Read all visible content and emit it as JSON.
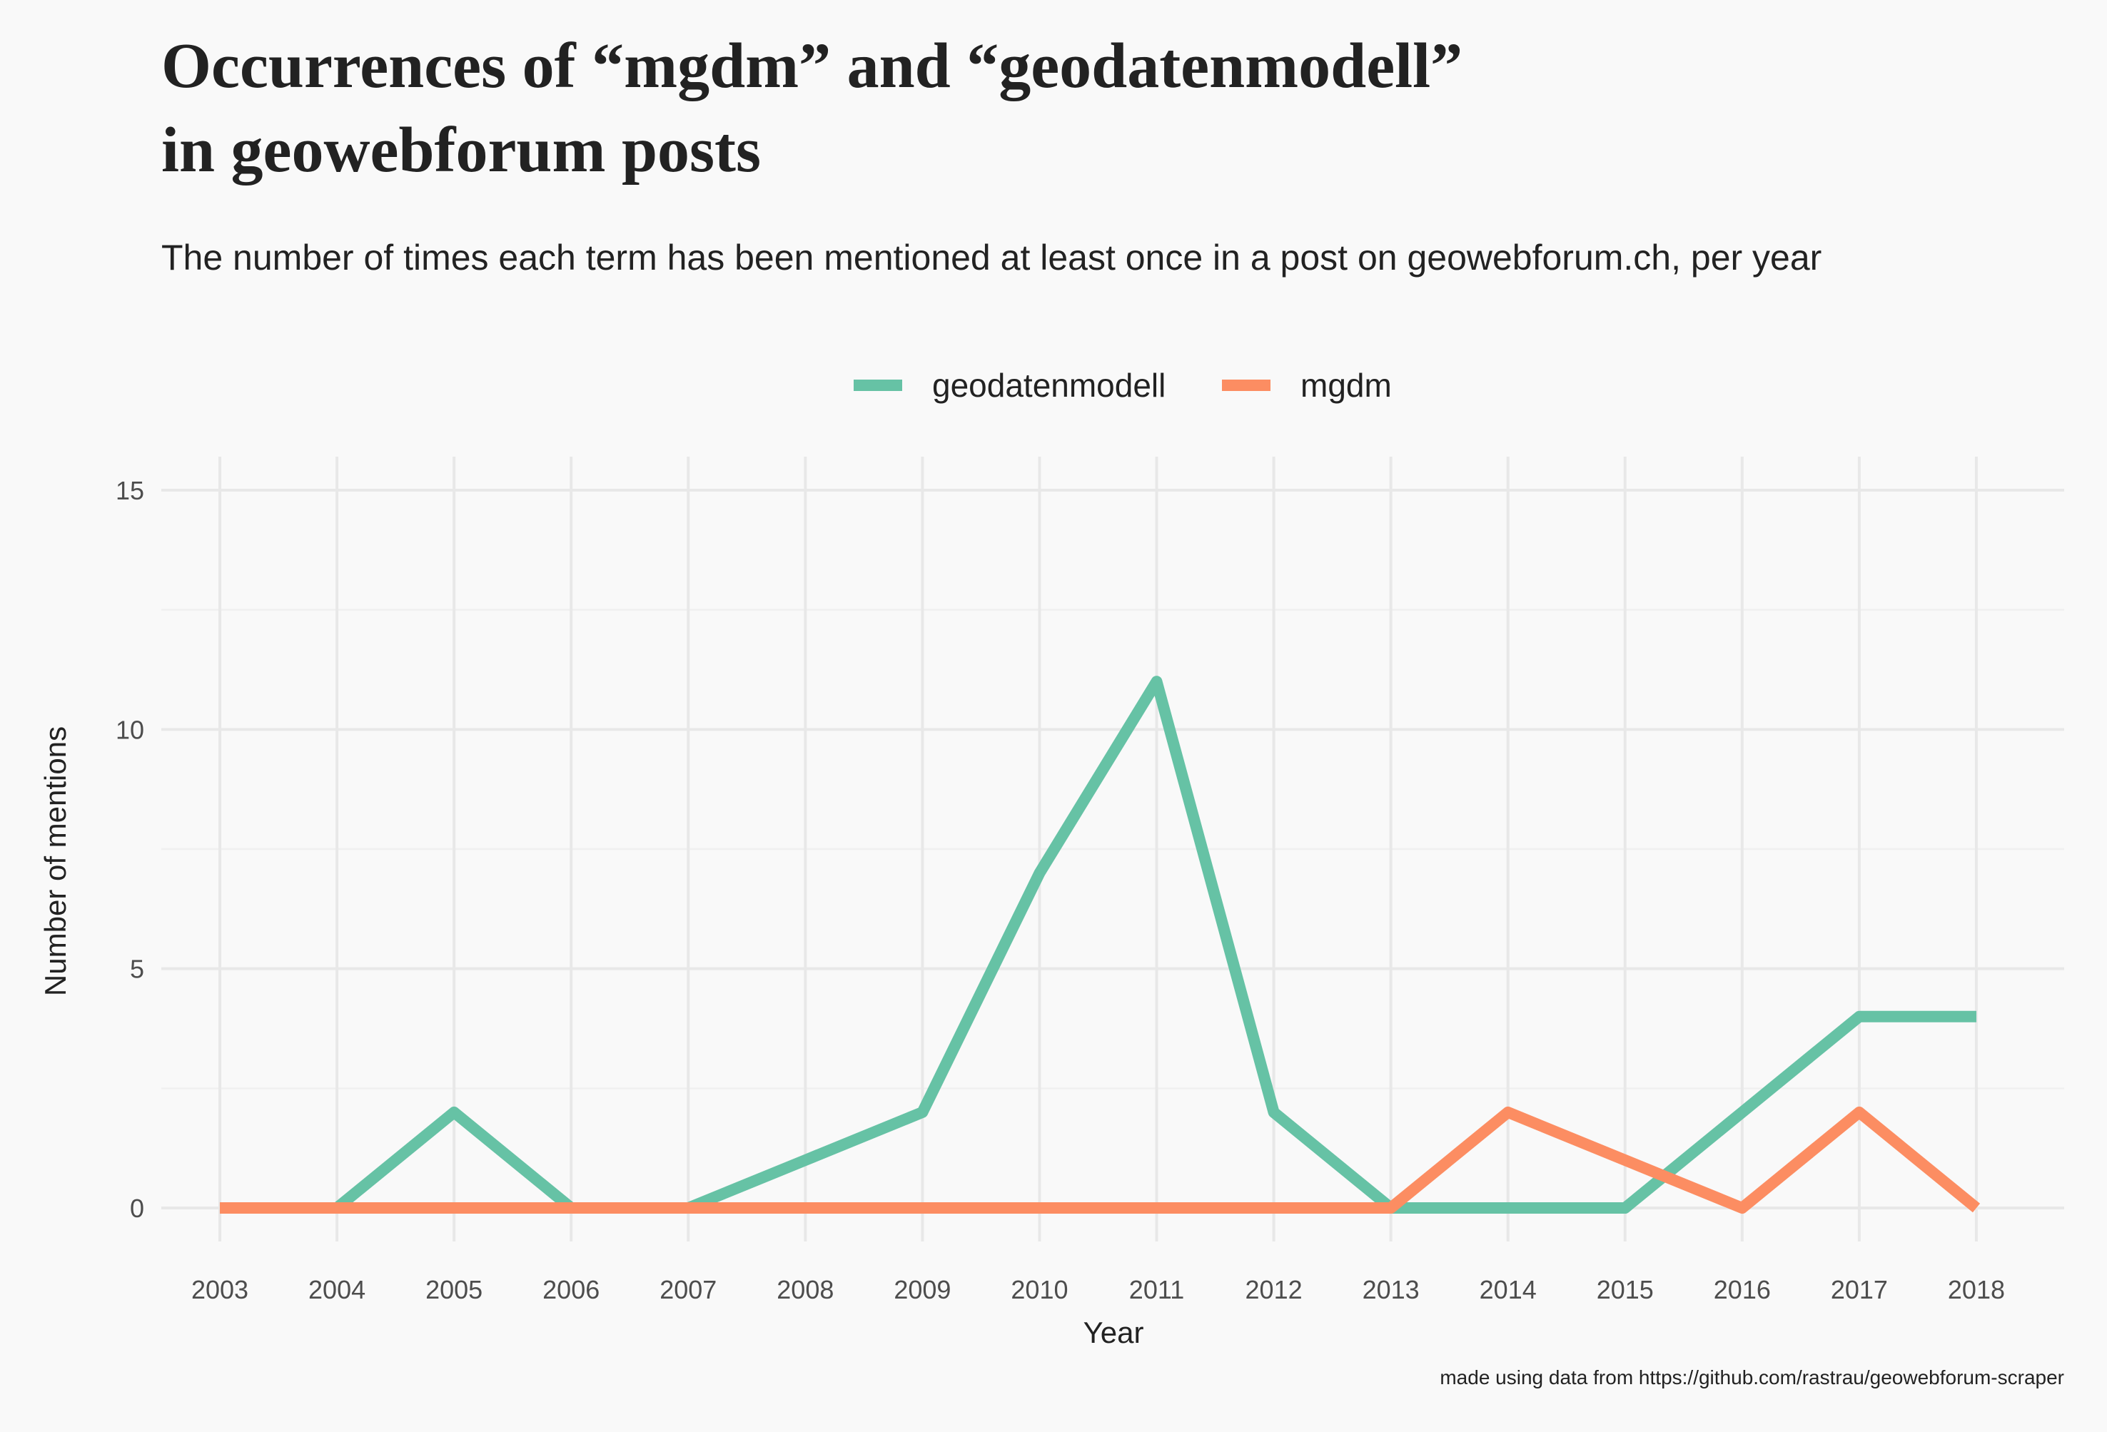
{
  "chart_data": {
    "type": "line",
    "title_lines": [
      "Occurrences of “mgdm” and “geodatenmodell”",
      "in geowebforum posts"
    ],
    "subtitle": "The number of times each term has been mentioned at least once in a post on geowebforum.ch, per year",
    "xlabel": "Year",
    "ylabel": "Number of mentions",
    "caption": "made using data from https://github.com/rastrau/geowebforum-scraper",
    "x": [
      2003,
      2004,
      2005,
      2006,
      2007,
      2008,
      2009,
      2010,
      2011,
      2012,
      2013,
      2014,
      2015,
      2016,
      2017,
      2018
    ],
    "xticks": [
      "2003",
      "2004",
      "2005",
      "2006",
      "2007",
      "2008",
      "2009",
      "2010",
      "2011",
      "2012",
      "2013",
      "2014",
      "2015",
      "2016",
      "2017",
      "2018"
    ],
    "xlim": [
      2002.5,
      2018.75
    ],
    "ylim": [
      -0.7,
      15.7
    ],
    "yticks": [
      0,
      5,
      10,
      15
    ],
    "yticklabels": [
      "0",
      "5",
      "10",
      "15"
    ],
    "grid": true,
    "legend_position": "top",
    "series": [
      {
        "name": "geodatenmodell",
        "color": "#66c2a5",
        "values": [
          0,
          0,
          2,
          0,
          0,
          1,
          2,
          7,
          11,
          2,
          0,
          0,
          0,
          2,
          4,
          4
        ]
      },
      {
        "name": "mgdm",
        "color": "#fc8d62",
        "values": [
          0,
          0,
          0,
          0,
          0,
          0,
          0,
          0,
          0,
          0,
          0,
          2,
          1,
          0,
          2,
          0
        ]
      }
    ]
  }
}
